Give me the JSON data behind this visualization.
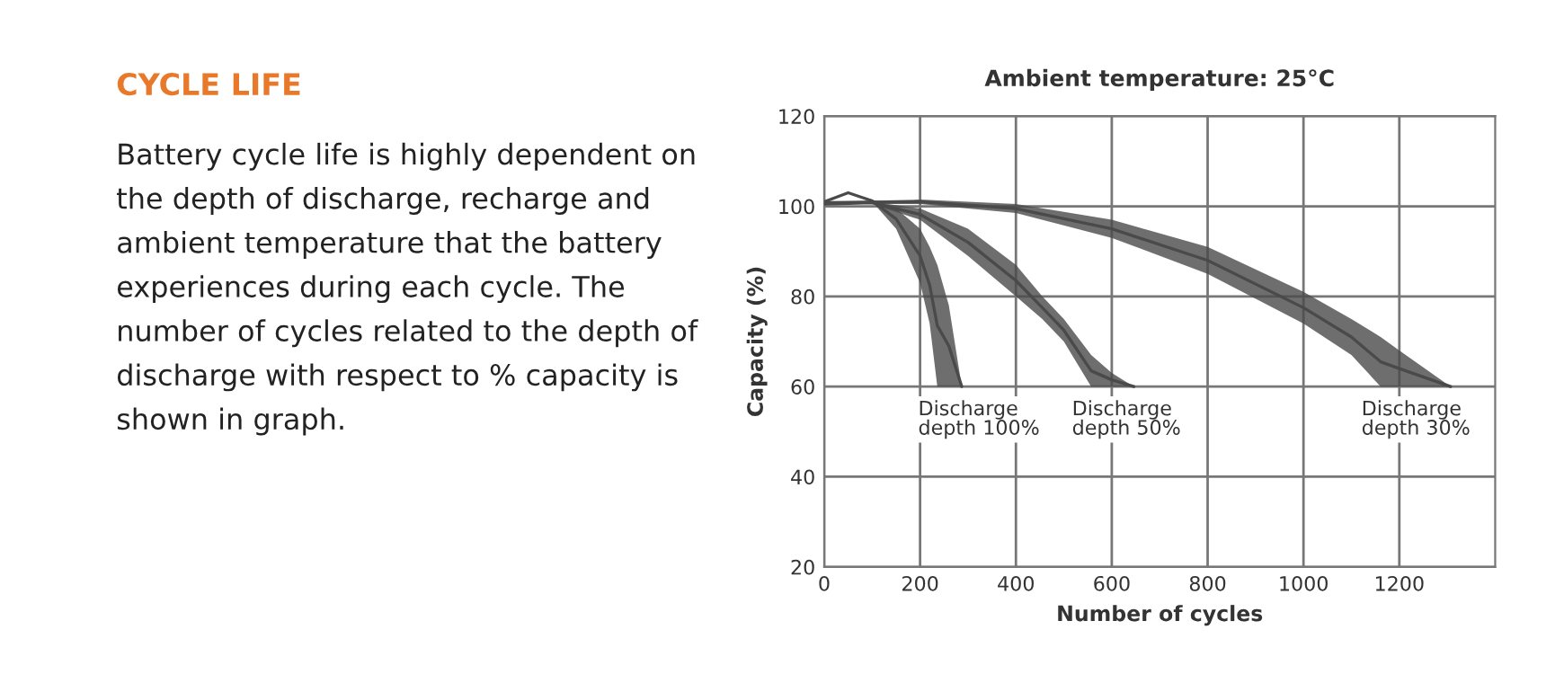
{
  "chart_data": [
    {
      "type": "other",
      "title": "CYCLE LIFE",
      "annotations": [
        "Battery cycle life is highly dependent on the depth of discharge, recharge and ambient temperature that the battery experiences during each cycle. The number of cycles related to the depth of discharge with respect to % capacity is shown in graph."
      ]
    },
    {
      "type": "line",
      "title": "Ambient temperature: 25°C",
      "xlabel": "Number of cycles",
      "ylabel": "Capacity (%)",
      "xlim": [
        0,
        1400
      ],
      "ylim": [
        20,
        120
      ],
      "xticks": [
        0,
        200,
        400,
        600,
        800,
        1000,
        1200
      ],
      "yticks": [
        20,
        40,
        60,
        80,
        100,
        120
      ],
      "grid": true,
      "legend": false,
      "marker": "none",
      "series": [
        {
          "name": "Discharge depth 100%",
          "color": "#4a4a4a",
          "x": [
            0,
            50,
            100,
            150,
            200,
            220,
            236,
            260,
            287
          ],
          "values": [
            101,
            103,
            101.2,
            97.2,
            89,
            82.5,
            73.5,
            69,
            60
          ],
          "upper": [
            101,
            103,
            101.5,
            99.5,
            95,
            91,
            87,
            78,
            60
          ],
          "lower": [
            101,
            103,
            101,
            95,
            83,
            74,
            60,
            60,
            60
          ]
        },
        {
          "name": "Discharge depth 50%",
          "color": "#4a4a4a",
          "x": [
            0,
            100,
            200,
            300,
            400,
            455,
            500,
            557,
            600,
            646
          ],
          "values": [
            100.5,
            100.8,
            98.2,
            92,
            83.5,
            77.5,
            72.5,
            63.5,
            61.5,
            60
          ],
          "upper": [
            100.5,
            101,
            99.5,
            95,
            87,
            80,
            75,
            67,
            63,
            60
          ],
          "lower": [
            100.5,
            100.5,
            97,
            89,
            80,
            75,
            70,
            60,
            60,
            60
          ]
        },
        {
          "name": "Discharge depth 30%",
          "color": "#4a4a4a",
          "x": [
            0,
            200,
            400,
            600,
            800,
            1000,
            1100,
            1161,
            1200,
            1307
          ],
          "values": [
            100.8,
            101,
            99.5,
            95,
            88,
            77.5,
            71,
            65.5,
            64,
            60
          ],
          "upper": [
            101,
            101.5,
            100.5,
            97,
            91,
            81,
            75,
            71,
            68,
            60
          ],
          "lower": [
            100.5,
            100.5,
            98.5,
            93,
            85,
            74,
            67,
            60,
            60,
            60
          ]
        }
      ]
    }
  ]
}
